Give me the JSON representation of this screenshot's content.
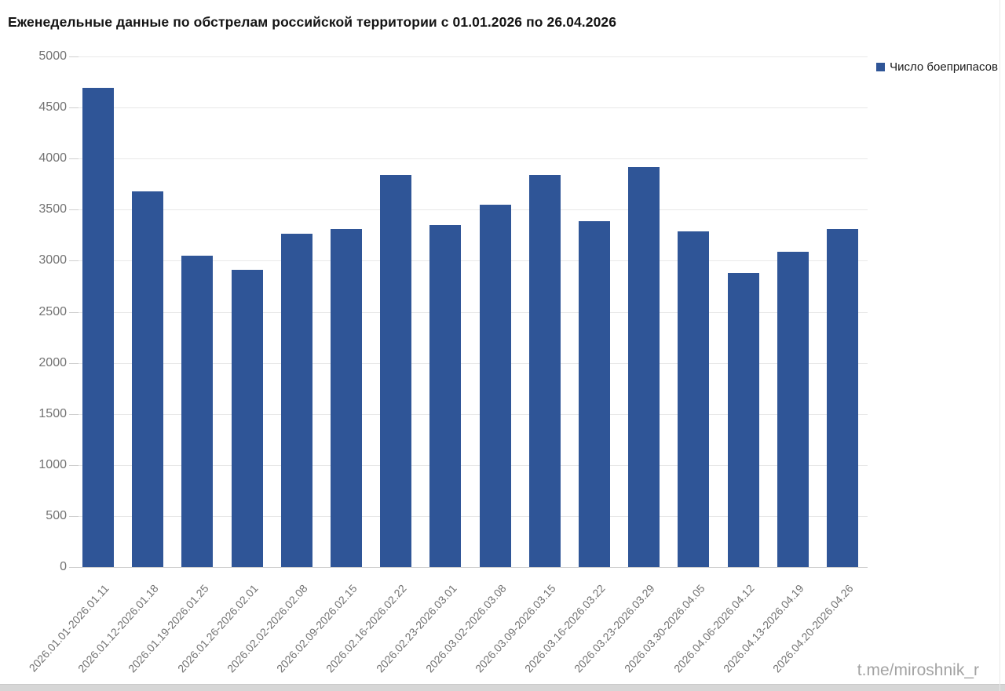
{
  "title": "Еженедельные данные по обстрелам российской территории с 01.01.2026 по 26.04.2026",
  "legend": {
    "label": "Число боеприпасов",
    "marker_color": "#2f5597"
  },
  "watermark": "t.me/miroshnik_r",
  "colors": {
    "bar": "#2f5597",
    "gridline": "#e8e8e8",
    "baseline": "#d0d0d0",
    "tick": "#cfcfcf",
    "axis_text": "#737373",
    "title_text": "#141414",
    "watermark_text": "#a3a3a3"
  },
  "chart_data": {
    "type": "bar",
    "title": "Еженедельные данные по обстрелам российской территории с 01.01.2026 по 26.04.2026",
    "categories": [
      "2026.01.01-2026.01.11",
      "2026.01.12-2026.01.18",
      "2026.01.19-2026.01.25",
      "2026.01.26-2026.02.01",
      "2026.02.02-2026.02.08",
      "2026.02.09-2026.02.15",
      "2026.02.16-2026.02.22",
      "2026.02.23-2026.03.01",
      "2026.03.02-2026.03.08",
      "2026.03.09-2026.03.15",
      "2026.03.16-2026.03.22",
      "2026.03.23-2026.03.29",
      "2026.03.30-2026.04.05",
      "2026.04.06-2026.04.12",
      "2026.04.13-2026.04.19",
      "2026.04.20-2026.04.26"
    ],
    "series": [
      {
        "name": "Число боеприпасов",
        "values": [
          4690,
          3680,
          3050,
          2910,
          3265,
          3310,
          3840,
          3345,
          3550,
          3840,
          3390,
          3920,
          3290,
          2880,
          3090,
          3310
        ]
      }
    ],
    "xlabel": "",
    "ylabel": "",
    "ylim": [
      0,
      5000
    ],
    "ytick_step": 500,
    "grid": "horizontal",
    "legend_position": "top-right"
  }
}
